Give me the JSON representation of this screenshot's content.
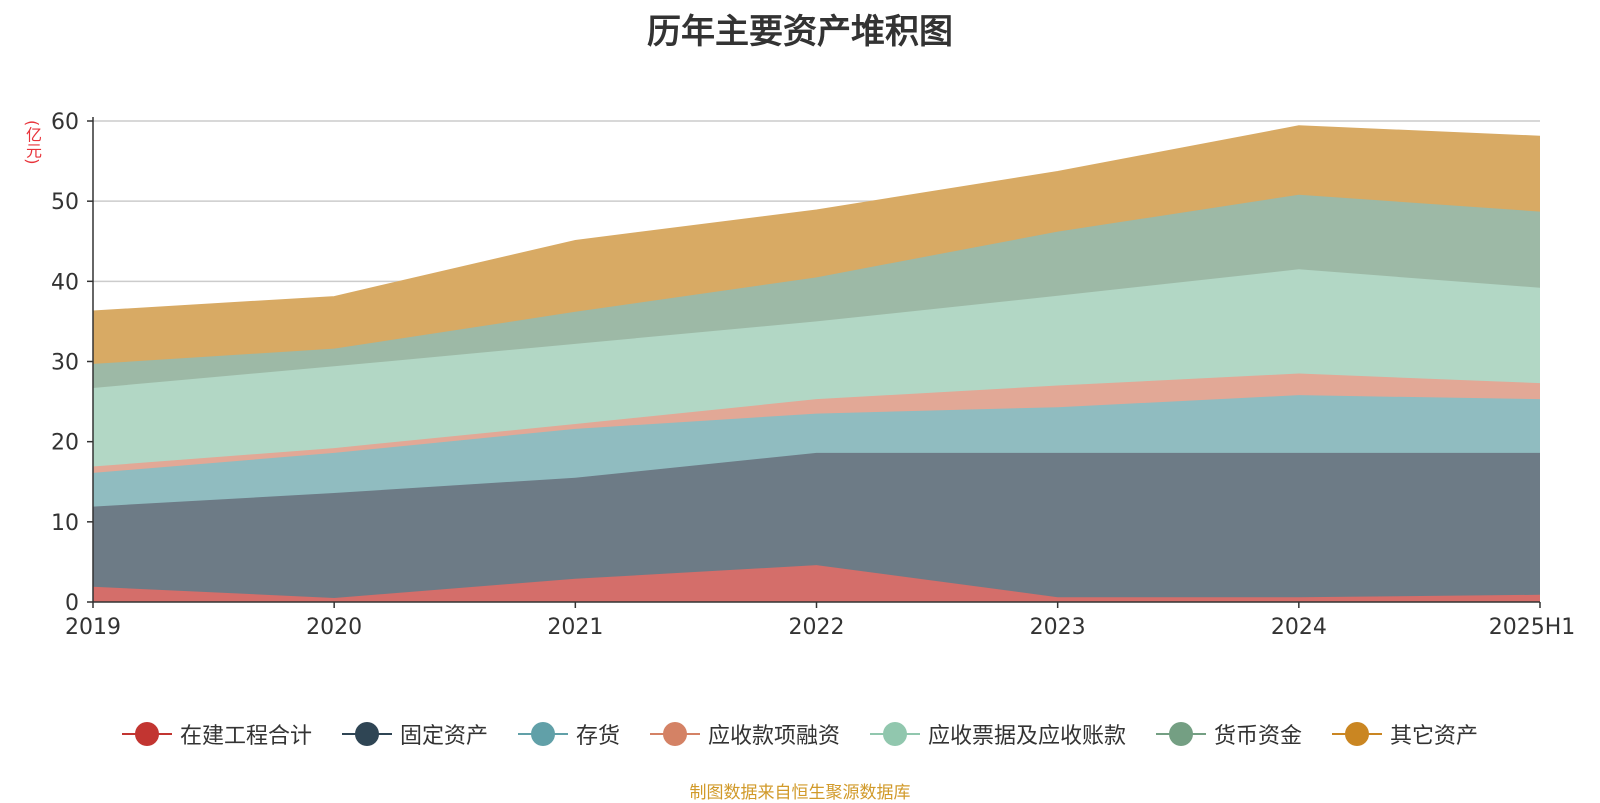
{
  "chart_data": {
    "type": "area",
    "stacked": true,
    "title": "历年主要资产堆积图",
    "ylabel": "(亿元)",
    "categories": [
      "2019",
      "2020",
      "2021",
      "2022",
      "2023",
      "2024",
      "2025H1"
    ],
    "ylim": [
      0,
      60
    ],
    "yticks": [
      0,
      10,
      20,
      30,
      40,
      50,
      60
    ],
    "grid": true,
    "legend_position": "bottom",
    "series": [
      {
        "name": "在建工程合计",
        "color": "#c23531",
        "fill": "#d46e6a",
        "values": [
          1.9,
          0.5,
          2.9,
          4.6,
          0.6,
          0.6,
          0.9
        ]
      },
      {
        "name": "固定资产",
        "color": "#2f4554",
        "fill": "#6d7b86",
        "values": [
          10.0,
          13.1,
          12.6,
          14.0,
          18.0,
          18.0,
          17.7
        ]
      },
      {
        "name": "存货",
        "color": "#61a0a8",
        "fill": "#90bcc0",
        "values": [
          4.2,
          5.0,
          6.1,
          4.9,
          5.7,
          7.2,
          6.7
        ]
      },
      {
        "name": "应收款项融资",
        "color": "#d48265",
        "fill": "#e2a896",
        "values": [
          0.8,
          0.6,
          0.6,
          1.8,
          2.7,
          2.7,
          2.0
        ]
      },
      {
        "name": "应收票据及应收账款",
        "color": "#91c7ae",
        "fill": "#b2d7c5",
        "values": [
          9.8,
          10.2,
          10.0,
          9.7,
          11.2,
          13.0,
          11.9
        ]
      },
      {
        "name": "货币资金",
        "color": "#749f83",
        "fill": "#9db9a6",
        "values": [
          3.0,
          2.2,
          4.0,
          5.5,
          8.0,
          9.3,
          9.5
        ]
      },
      {
        "name": "其它资产",
        "color": "#ca8622",
        "fill": "#d8aa64",
        "values": [
          6.6,
          6.5,
          8.9,
          8.4,
          7.5,
          8.6,
          9.4
        ]
      }
    ]
  },
  "source_note": "制图数据来自恒生聚源数据库"
}
